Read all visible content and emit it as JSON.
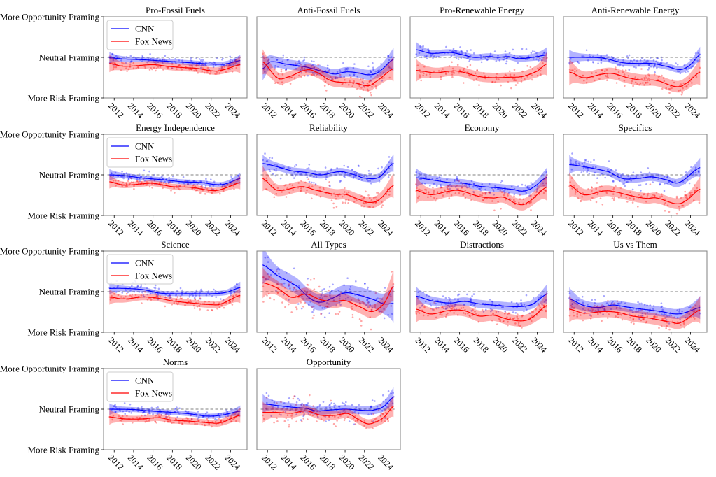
{
  "chart_data": {
    "type": "line",
    "layout": "small-multiples 4x4 (14 panels)",
    "x_ticks": [
      2012,
      2014,
      2016,
      2018,
      2020,
      2022,
      2024
    ],
    "xlim": [
      2010.9,
      2025.7
    ],
    "ylim": [
      -1,
      1
    ],
    "y_tick_values": [
      1,
      0,
      -1
    ],
    "y_tick_labels": [
      "More Opportunity Framing",
      "Neutral Framing",
      "More Risk Framing"
    ],
    "reference_line": {
      "y": 0,
      "style": "dashed",
      "color": "#808080"
    },
    "legend": {
      "placement": "top-left",
      "entries": [
        "CNN",
        "Fox News"
      ]
    },
    "colors": {
      "CNN": "#0000ff",
      "Fox News": "#ff0000"
    },
    "panels": [
      {
        "title": "Pro-Fossil Fuels",
        "scatter_spread": 0.12,
        "series": [
          {
            "name": "CNN",
            "ci": 0.06,
            "x": [
              2011.5,
              2013,
              2015,
              2017,
              2019,
              2021,
              2022.5,
              2023.5,
              2025
            ],
            "y": [
              -0.01,
              -0.04,
              -0.06,
              -0.09,
              -0.12,
              -0.15,
              -0.17,
              -0.16,
              -0.08
            ]
          },
          {
            "name": "Fox News",
            "ci": 0.09,
            "x": [
              2011.5,
              2013,
              2016,
              2017.5,
              2019,
              2020.5,
              2022,
              2023,
              2025
            ],
            "y": [
              -0.15,
              -0.22,
              -0.18,
              -0.22,
              -0.25,
              -0.27,
              -0.33,
              -0.32,
              -0.18
            ]
          }
        ]
      },
      {
        "title": "Anti-Fossil Fuels",
        "scatter_spread": 0.25,
        "series": [
          {
            "name": "CNN",
            "ci": 0.12,
            "x": [
              2011.5,
              2012.3,
              2014,
              2016,
              2018,
              2019,
              2020,
              2021,
              2022.5,
              2023.5,
              2025
            ],
            "y": [
              -0.28,
              -0.11,
              -0.17,
              -0.24,
              -0.36,
              -0.41,
              -0.36,
              -0.37,
              -0.43,
              -0.35,
              -0.05
            ]
          },
          {
            "name": "Fox News",
            "ci": 0.13,
            "x": [
              2011.5,
              2013,
              2014,
              2016,
              2017,
              2018.5,
              2020,
              2021,
              2022.3,
              2023,
              2025
            ],
            "y": [
              -0.11,
              -0.5,
              -0.49,
              -0.31,
              -0.36,
              -0.57,
              -0.62,
              -0.63,
              -0.7,
              -0.62,
              -0.28
            ]
          }
        ]
      },
      {
        "title": "Pro-Renewable Energy",
        "scatter_spread": 0.2,
        "series": [
          {
            "name": "CNN",
            "ci": 0.08,
            "x": [
              2011.5,
              2013,
              2015,
              2016,
              2017.5,
              2019,
              2020,
              2021,
              2022,
              2023.5,
              2025
            ],
            "y": [
              0.19,
              0.1,
              0.12,
              0.08,
              0.0,
              0.02,
              0.0,
              0.02,
              -0.03,
              0.0,
              0.06
            ]
          },
          {
            "name": "Fox News",
            "ci": 0.12,
            "x": [
              2011.5,
              2013.5,
              2015,
              2016,
              2018,
              2019.5,
              2021,
              2022.5,
              2024,
              2025
            ],
            "y": [
              -0.32,
              -0.38,
              -0.34,
              -0.35,
              -0.47,
              -0.5,
              -0.49,
              -0.47,
              -0.34,
              -0.16
            ]
          }
        ]
      },
      {
        "title": "Anti-Renewable Energy",
        "scatter_spread": 0.2,
        "series": [
          {
            "name": "CNN",
            "ci": 0.08,
            "x": [
              2011.5,
              2013,
              2015,
              2017,
              2018.5,
              2020,
              2021.5,
              2023,
              2024,
              2025
            ],
            "y": [
              0.0,
              0.0,
              -0.02,
              -0.13,
              -0.15,
              -0.15,
              -0.22,
              -0.3,
              -0.18,
              0.07
            ]
          },
          {
            "name": "Fox News",
            "ci": 0.14,
            "x": [
              2011.5,
              2013,
              2015,
              2016,
              2017.5,
              2019,
              2020.5,
              2022.5,
              2023.5,
              2025
            ],
            "y": [
              -0.36,
              -0.5,
              -0.41,
              -0.4,
              -0.5,
              -0.56,
              -0.57,
              -0.72,
              -0.65,
              -0.36
            ]
          }
        ]
      },
      {
        "title": "Energy Independence",
        "scatter_spread": 0.12,
        "series": [
          {
            "name": "CNN",
            "ci": 0.06,
            "x": [
              2011.5,
              2013,
              2015,
              2017,
              2019,
              2021,
              2022.5,
              2023.5,
              2025
            ],
            "y": [
              0.0,
              -0.02,
              -0.08,
              -0.12,
              -0.17,
              -0.19,
              -0.24,
              -0.22,
              -0.09
            ]
          },
          {
            "name": "Fox News",
            "ci": 0.07,
            "x": [
              2011.5,
              2013,
              2015,
              2016,
              2018,
              2020,
              2022.3,
              2023.5,
              2025
            ],
            "y": [
              -0.17,
              -0.25,
              -0.22,
              -0.21,
              -0.29,
              -0.31,
              -0.39,
              -0.32,
              -0.19
            ]
          }
        ]
      },
      {
        "title": "Reliability",
        "scatter_spread": 0.25,
        "series": [
          {
            "name": "CNN",
            "ci": 0.09,
            "x": [
              2011.5,
              2013,
              2014.5,
              2016,
              2017.5,
              2019.5,
              2021,
              2022,
              2023.5,
              2025
            ],
            "y": [
              0.28,
              0.2,
              0.1,
              0.06,
              0.0,
              0.08,
              0.0,
              -0.08,
              -0.06,
              0.29
            ]
          },
          {
            "name": "Fox News",
            "ci": 0.13,
            "x": [
              2011.5,
              2013,
              2015.5,
              2017,
              2019,
              2020,
              2021.5,
              2022.5,
              2023.5,
              2025
            ],
            "y": [
              -0.09,
              -0.38,
              -0.29,
              -0.38,
              -0.48,
              -0.48,
              -0.61,
              -0.68,
              -0.61,
              -0.26
            ]
          }
        ]
      },
      {
        "title": "Economy",
        "scatter_spread": 0.22,
        "series": [
          {
            "name": "CNN",
            "ci": 0.1,
            "x": [
              2011.5,
              2013,
              2015,
              2016.5,
              2018,
              2020,
              2021.5,
              2022.5,
              2023.5,
              2025
            ],
            "y": [
              -0.07,
              -0.12,
              -0.19,
              -0.21,
              -0.28,
              -0.32,
              -0.36,
              -0.4,
              -0.32,
              -0.06
            ]
          },
          {
            "name": "Fox News",
            "ci": 0.14,
            "x": [
              2011.5,
              2013,
              2015,
              2016,
              2018,
              2019.5,
              2020.5,
              2022,
              2023,
              2025
            ],
            "y": [
              -0.38,
              -0.49,
              -0.4,
              -0.39,
              -0.53,
              -0.57,
              -0.55,
              -0.72,
              -0.68,
              -0.3
            ]
          }
        ]
      },
      {
        "title": "Specifics",
        "scatter_spread": 0.25,
        "series": [
          {
            "name": "CNN",
            "ci": 0.1,
            "x": [
              2011.5,
              2013,
              2015.5,
              2017,
              2018.5,
              2020,
              2021.5,
              2022.8,
              2025
            ],
            "y": [
              0.25,
              0.2,
              0.08,
              -0.09,
              -0.09,
              -0.05,
              -0.12,
              -0.19,
              0.18
            ]
          },
          {
            "name": "Fox News",
            "ci": 0.13,
            "x": [
              2011.5,
              2013,
              2015,
              2016,
              2018,
              2019.5,
              2020.5,
              2022.5,
              2023.5,
              2025
            ],
            "y": [
              -0.25,
              -0.49,
              -0.4,
              -0.41,
              -0.52,
              -0.58,
              -0.57,
              -0.71,
              -0.64,
              -0.35
            ]
          }
        ]
      },
      {
        "title": "Science",
        "scatter_spread": 0.15,
        "series": [
          {
            "name": "CNN",
            "ci": 0.06,
            "x": [
              2011.5,
              2013,
              2015,
              2016.5,
              2018,
              2020,
              2022,
              2023.5,
              2025
            ],
            "y": [
              0.08,
              0.08,
              0.05,
              -0.03,
              -0.05,
              -0.05,
              -0.05,
              -0.02,
              0.1
            ]
          },
          {
            "name": "Fox News",
            "ci": 0.08,
            "x": [
              2011.5,
              2013,
              2015,
              2016.5,
              2018,
              2020,
              2022,
              2023,
              2025
            ],
            "y": [
              -0.13,
              -0.18,
              -0.13,
              -0.16,
              -0.23,
              -0.28,
              -0.32,
              -0.3,
              -0.09
            ]
          }
        ]
      },
      {
        "title": "All Types",
        "scatter_spread": 0.45,
        "series": [
          {
            "name": "CNN",
            "ci": 0.2,
            "x": [
              2011.5,
              2013,
              2015,
              2016.5,
              2017.5,
              2018.5,
              2020,
              2021.5,
              2023,
              2024,
              2025
            ],
            "y": [
              0.66,
              0.4,
              0.14,
              -0.18,
              -0.26,
              -0.18,
              -0.03,
              -0.09,
              -0.2,
              -0.3,
              -0.29
            ]
          },
          {
            "name": "Fox News",
            "ci": 0.16,
            "x": [
              2011.5,
              2013,
              2014.5,
              2016,
              2017.5,
              2019,
              2020,
              2021.5,
              2022.8,
              2024,
              2025
            ],
            "y": [
              0.22,
              0.09,
              -0.14,
              -0.06,
              -0.2,
              -0.24,
              -0.22,
              -0.37,
              -0.49,
              -0.3,
              0.14
            ]
          }
        ]
      },
      {
        "title": "Distractions",
        "scatter_spread": 0.22,
        "series": [
          {
            "name": "CNN",
            "ci": 0.1,
            "x": [
              2011.5,
              2013,
              2015,
              2016.5,
              2018,
              2020,
              2022,
              2023.5,
              2025
            ],
            "y": [
              -0.11,
              -0.22,
              -0.28,
              -0.24,
              -0.3,
              -0.34,
              -0.37,
              -0.31,
              -0.06
            ]
          },
          {
            "name": "Fox News",
            "ci": 0.14,
            "x": [
              2011.5,
              2013,
              2015,
              2016.5,
              2018,
              2019.5,
              2021,
              2022.5,
              2023.5,
              2025
            ],
            "y": [
              -0.43,
              -0.55,
              -0.46,
              -0.47,
              -0.6,
              -0.58,
              -0.68,
              -0.72,
              -0.63,
              -0.34
            ]
          }
        ]
      },
      {
        "title": "Us vs Them",
        "scatter_spread": 0.22,
        "series": [
          {
            "name": "CNN",
            "ci": 0.12,
            "x": [
              2011.5,
              2013,
              2014.5,
              2016,
              2017.5,
              2019,
              2021,
              2022.5,
              2023.5,
              2025
            ],
            "y": [
              -0.18,
              -0.34,
              -0.39,
              -0.33,
              -0.38,
              -0.43,
              -0.49,
              -0.55,
              -0.51,
              -0.39
            ]
          },
          {
            "name": "Fox News",
            "ci": 0.14,
            "x": [
              2011.5,
              2013,
              2015,
              2016.5,
              2018,
              2020,
              2022,
              2023,
              2025
            ],
            "y": [
              -0.43,
              -0.53,
              -0.49,
              -0.51,
              -0.6,
              -0.66,
              -0.75,
              -0.76,
              -0.45
            ]
          }
        ]
      },
      {
        "title": "Norms",
        "scatter_spread": 0.12,
        "series": [
          {
            "name": "CNN",
            "ci": 0.06,
            "x": [
              2011.5,
              2014,
              2016,
              2018,
              2020,
              2021.5,
              2023,
              2025
            ],
            "y": [
              0.0,
              -0.01,
              -0.05,
              -0.08,
              -0.12,
              -0.17,
              -0.15,
              -0.05
            ]
          },
          {
            "name": "Fox News",
            "ci": 0.08,
            "x": [
              2011.5,
              2013,
              2015,
              2016.5,
              2018,
              2020,
              2022,
              2023,
              2025
            ],
            "y": [
              -0.19,
              -0.24,
              -0.24,
              -0.21,
              -0.27,
              -0.3,
              -0.34,
              -0.33,
              -0.15
            ]
          }
        ]
      },
      {
        "title": "Opportunity",
        "scatter_spread": 0.3,
        "series": [
          {
            "name": "CNN",
            "ci": 0.1,
            "x": [
              2011.5,
              2013,
              2014.5,
              2016,
              2017,
              2018.5,
              2020,
              2022,
              2023,
              2024,
              2025
            ],
            "y": [
              0.13,
              0.09,
              0.05,
              0.02,
              -0.04,
              -0.02,
              0.0,
              -0.03,
              -0.02,
              0.07,
              0.3
            ]
          },
          {
            "name": "Fox News",
            "ci": 0.11,
            "x": [
              2011.5,
              2013,
              2014.5,
              2016,
              2017.5,
              2019,
              2020.3,
              2021.5,
              2022.3,
              2023,
              2024,
              2025
            ],
            "y": [
              -0.08,
              -0.08,
              -0.1,
              -0.04,
              -0.15,
              -0.15,
              -0.11,
              -0.27,
              -0.36,
              -0.33,
              -0.2,
              0.07
            ]
          }
        ]
      }
    ]
  }
}
